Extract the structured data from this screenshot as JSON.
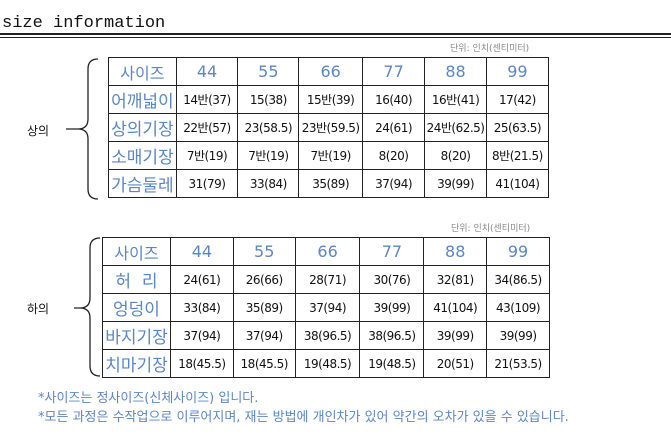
{
  "title": "size information",
  "unit_label": "단위: 인치(센티미터)",
  "top": {
    "group_label": "상의",
    "header": [
      "사이즈",
      "44",
      "55",
      "66",
      "77",
      "88",
      "99"
    ],
    "rows": [
      {
        "label": "어깨넓이",
        "values": [
          "14반(37)",
          "15(38)",
          "15반(39)",
          "16(40)",
          "16반(41)",
          "17(42)"
        ]
      },
      {
        "label": "상의기장",
        "values": [
          "22반(57)",
          "23(58.5)",
          "23반(59.5)",
          "24(61)",
          "24반(62.5)",
          "25(63.5)"
        ]
      },
      {
        "label": "소매기장",
        "values": [
          "7반(19)",
          "7반(19)",
          "7반(19)",
          "8(20)",
          "8(20)",
          "8반(21.5)"
        ]
      },
      {
        "label": "가슴둘레",
        "values": [
          "31(79)",
          "33(84)",
          "35(89)",
          "37(94)",
          "39(99)",
          "41(104)"
        ]
      }
    ]
  },
  "bottom": {
    "group_label": "하의",
    "header": [
      "사이즈",
      "44",
      "55",
      "66",
      "77",
      "88",
      "99"
    ],
    "rows": [
      {
        "label": "허  리",
        "values": [
          "24(61)",
          "26(66)",
          "28(71)",
          "30(76)",
          "32(81)",
          "34(86.5)"
        ]
      },
      {
        "label": "엉덩이",
        "values": [
          "33(84)",
          "35(89)",
          "37(94)",
          "39(99)",
          "41(104)",
          "43(109)"
        ]
      },
      {
        "label": "바지기장",
        "values": [
          "37(94)",
          "37(94)",
          "38(96.5)",
          "38(96.5)",
          "39(99)",
          "39(99)"
        ]
      },
      {
        "label": "치마기장",
        "values": [
          "18(45.5)",
          "18(45.5)",
          "19(48.5)",
          "19(48.5)",
          "20(51)",
          "21(53.5)"
        ]
      }
    ]
  },
  "notes": [
    "*사이즈는 정사이즈(신체사이즈) 입니다.",
    "*모든 과정은 수작업으로 이루어지며,  재는 방법에 개인차가 있어 약간의 오차가 있을 수 있습니다."
  ],
  "colors": {
    "accent": "#5b86c6"
  }
}
